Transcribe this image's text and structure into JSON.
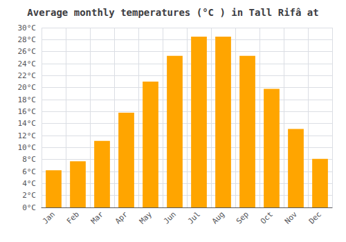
{
  "chart_data": {
    "type": "bar",
    "title": "Average monthly temperatures (°C ) in Tall Rifâ at",
    "categories": [
      "Jan",
      "Feb",
      "Mar",
      "Apr",
      "May",
      "Jun",
      "Jul",
      "Aug",
      "Sep",
      "Oct",
      "Nov",
      "Dec"
    ],
    "values": [
      6.2,
      7.7,
      11.1,
      15.8,
      21.0,
      25.3,
      28.5,
      28.5,
      25.3,
      19.8,
      13.1,
      8.1
    ],
    "color": "#FFA500",
    "ylim": [
      0,
      30
    ],
    "yticks": [
      {
        "value": 0,
        "label": "0°C"
      },
      {
        "value": 2,
        "label": "2°C"
      },
      {
        "value": 4,
        "label": "4°C"
      },
      {
        "value": 6,
        "label": "6°C"
      },
      {
        "value": 8,
        "label": "8°C"
      },
      {
        "value": 10,
        "label": "10°C"
      },
      {
        "value": 12,
        "label": "12°C"
      },
      {
        "value": 14,
        "label": "14°C"
      },
      {
        "value": 16,
        "label": "16°C"
      },
      {
        "value": 18,
        "label": "18°C"
      },
      {
        "value": 20,
        "label": "20°C"
      },
      {
        "value": 22,
        "label": "22°C"
      },
      {
        "value": 24,
        "label": "24°C"
      },
      {
        "value": 26,
        "label": "26°C"
      },
      {
        "value": 28,
        "label": "28°C"
      },
      {
        "value": 30,
        "label": "30°C"
      }
    ],
    "grid": true
  }
}
